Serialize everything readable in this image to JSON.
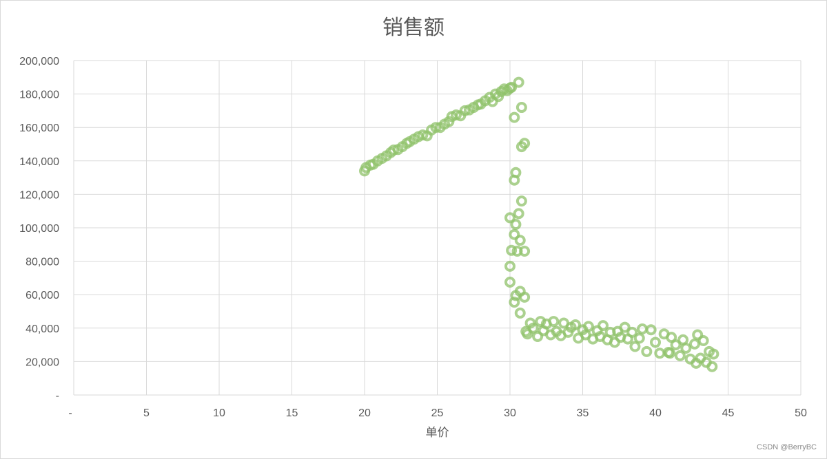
{
  "chart_data": {
    "type": "scatter",
    "title": "销售额",
    "xlabel": "单价",
    "ylabel": "",
    "xlim": [
      0,
      50
    ],
    "ylim": [
      0,
      200000
    ],
    "x_ticks": [
      0,
      5,
      10,
      15,
      20,
      25,
      30,
      35,
      40,
      45,
      50
    ],
    "x_tick_labels": [
      "-",
      "5",
      "10",
      "15",
      "20",
      "25",
      "30",
      "35",
      "40",
      "45",
      "50"
    ],
    "y_ticks": [
      0,
      20000,
      40000,
      60000,
      80000,
      100000,
      120000,
      140000,
      160000,
      180000,
      200000
    ],
    "y_tick_labels": [
      "-",
      "20,000",
      "40,000",
      "60,000",
      "80,000",
      "100,000",
      "120,000",
      "140,000",
      "160,000",
      "180,000",
      "200,000"
    ],
    "grid": true,
    "marker_color": "#8fc26a",
    "marker_stroke": "#70ad47",
    "series": [
      {
        "points": [
          [
            20.0,
            134000
          ],
          [
            20.1,
            136000
          ],
          [
            20.4,
            137500
          ],
          [
            20.6,
            138000
          ],
          [
            20.9,
            140000
          ],
          [
            21.2,
            141500
          ],
          [
            21.5,
            143000
          ],
          [
            21.8,
            145000
          ],
          [
            22.0,
            146500
          ],
          [
            22.3,
            146800
          ],
          [
            22.6,
            148500
          ],
          [
            22.9,
            150500
          ],
          [
            23.1,
            151500
          ],
          [
            23.4,
            153000
          ],
          [
            23.7,
            154500
          ],
          [
            24.0,
            155500
          ],
          [
            24.3,
            155000
          ],
          [
            24.6,
            158500
          ],
          [
            24.9,
            160000
          ],
          [
            25.2,
            160000
          ],
          [
            25.5,
            162000
          ],
          [
            25.8,
            163500
          ],
          [
            26.0,
            166500
          ],
          [
            26.3,
            167500
          ],
          [
            26.6,
            167000
          ],
          [
            26.9,
            170000
          ],
          [
            27.2,
            170500
          ],
          [
            27.5,
            172000
          ],
          [
            27.8,
            173500
          ],
          [
            28.0,
            174000
          ],
          [
            28.3,
            176000
          ],
          [
            28.6,
            178000
          ],
          [
            28.8,
            175500
          ],
          [
            29.0,
            180000
          ],
          [
            29.2,
            178500
          ],
          [
            29.4,
            181500
          ],
          [
            29.6,
            183000
          ],
          [
            29.8,
            182000
          ],
          [
            30.0,
            183500
          ],
          [
            30.1,
            184000
          ],
          [
            30.6,
            187000
          ],
          [
            30.8,
            172000
          ],
          [
            30.3,
            166000
          ],
          [
            31.0,
            150500
          ],
          [
            30.8,
            148500
          ],
          [
            30.4,
            133000
          ],
          [
            30.3,
            128500
          ],
          [
            30.8,
            116000
          ],
          [
            30.0,
            106000
          ],
          [
            30.6,
            108500
          ],
          [
            30.4,
            102000
          ],
          [
            30.3,
            96000
          ],
          [
            30.7,
            92500
          ],
          [
            30.1,
            86500
          ],
          [
            30.5,
            86000
          ],
          [
            31.0,
            86000
          ],
          [
            30.0,
            77000
          ],
          [
            30.0,
            67500
          ],
          [
            30.7,
            62000
          ],
          [
            30.4,
            59500
          ],
          [
            31.0,
            58500
          ],
          [
            30.3,
            55500
          ],
          [
            30.7,
            49000
          ],
          [
            31.1,
            38000
          ],
          [
            31.2,
            36500
          ],
          [
            31.4,
            43000
          ],
          [
            31.6,
            40000
          ],
          [
            31.9,
            35000
          ],
          [
            32.1,
            44000
          ],
          [
            32.3,
            38500
          ],
          [
            32.5,
            42500
          ],
          [
            32.8,
            36000
          ],
          [
            33.0,
            44000
          ],
          [
            33.2,
            38000
          ],
          [
            33.5,
            35500
          ],
          [
            33.7,
            43000
          ],
          [
            34.0,
            37500
          ],
          [
            34.2,
            40500
          ],
          [
            34.5,
            42000
          ],
          [
            34.7,
            34000
          ],
          [
            35.0,
            39000
          ],
          [
            35.2,
            36000
          ],
          [
            35.4,
            41000
          ],
          [
            35.7,
            33500
          ],
          [
            36.0,
            38500
          ],
          [
            36.2,
            35000
          ],
          [
            36.4,
            41500
          ],
          [
            36.7,
            33000
          ],
          [
            36.9,
            37500
          ],
          [
            37.2,
            31500
          ],
          [
            37.4,
            38000
          ],
          [
            37.6,
            34500
          ],
          [
            37.9,
            40500
          ],
          [
            38.1,
            33500
          ],
          [
            38.4,
            37500
          ],
          [
            38.6,
            29000
          ],
          [
            38.9,
            34000
          ],
          [
            39.1,
            39500
          ],
          [
            39.4,
            26000
          ],
          [
            39.7,
            39000
          ],
          [
            40.0,
            31500
          ],
          [
            40.3,
            25000
          ],
          [
            40.6,
            36500
          ],
          [
            40.9,
            25500
          ],
          [
            41.1,
            34500
          ],
          [
            41.4,
            30000
          ],
          [
            41.7,
            23500
          ],
          [
            41.9,
            33000
          ],
          [
            42.1,
            28000
          ],
          [
            42.4,
            21500
          ],
          [
            42.7,
            30500
          ],
          [
            42.9,
            36000
          ],
          [
            43.1,
            22000
          ],
          [
            43.3,
            32500
          ],
          [
            43.5,
            19500
          ],
          [
            43.7,
            26000
          ],
          [
            43.9,
            17000
          ],
          [
            44.0,
            24500
          ],
          [
            42.8,
            19000
          ],
          [
            41.0,
            25000
          ]
        ]
      }
    ]
  },
  "watermark": "CSDN @BerryBC"
}
